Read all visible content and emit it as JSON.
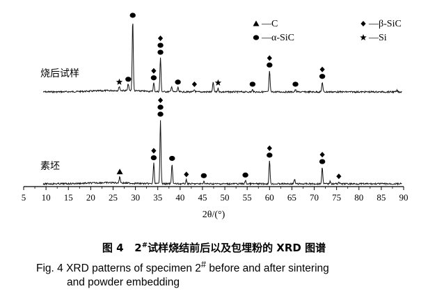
{
  "chart_data": {
    "type": "line",
    "xlabel": "2θ/(°)",
    "ylabel": "",
    "xlim": [
      5,
      90
    ],
    "x_ticks": [
      "5",
      "10",
      "15",
      "20",
      "25",
      "30",
      "35",
      "40",
      "45",
      "50",
      "55",
      "60",
      "65",
      "70",
      "75",
      "80",
      "85",
      "90"
    ],
    "series": [
      {
        "name": "烧后试样",
        "peaks": [
          {
            "x": 26.4,
            "h": 0.06
          },
          {
            "x": 28.4,
            "h": 0.1
          },
          {
            "x": 29.4,
            "h": 1.0
          },
          {
            "x": 34.1,
            "h": 0.12
          },
          {
            "x": 35.6,
            "h": 0.48
          },
          {
            "x": 38.1,
            "h": 0.08
          },
          {
            "x": 39.5,
            "h": 0.06
          },
          {
            "x": 43.2,
            "h": 0.03
          },
          {
            "x": 47.4,
            "h": 0.14
          },
          {
            "x": 48.5,
            "h": 0.05
          },
          {
            "x": 56.2,
            "h": 0.03
          },
          {
            "x": 60.0,
            "h": 0.3
          },
          {
            "x": 65.8,
            "h": 0.03
          },
          {
            "x": 71.8,
            "h": 0.14
          },
          {
            "x": 88.5,
            "h": 0.02
          }
        ]
      },
      {
        "name": "素坯",
        "peaks": [
          {
            "x": 26.5,
            "h": 0.1
          },
          {
            "x": 34.1,
            "h": 0.32
          },
          {
            "x": 35.6,
            "h": 1.0
          },
          {
            "x": 38.2,
            "h": 0.31
          },
          {
            "x": 41.4,
            "h": 0.06
          },
          {
            "x": 45.3,
            "h": 0.04
          },
          {
            "x": 54.6,
            "h": 0.05
          },
          {
            "x": 60.0,
            "h": 0.36
          },
          {
            "x": 65.6,
            "h": 0.07
          },
          {
            "x": 71.8,
            "h": 0.26
          },
          {
            "x": 73.6,
            "h": 0.04
          },
          {
            "x": 75.5,
            "h": 0.03
          }
        ]
      }
    ],
    "legend": [
      {
        "symbol": "triangle",
        "label": "—C"
      },
      {
        "symbol": "diamond",
        "label": "—β-SiC"
      },
      {
        "symbol": "circle",
        "label": "—α-SiC"
      },
      {
        "symbol": "star",
        "label": "—Si"
      }
    ],
    "markers": [
      {
        "series": 0,
        "x": 26.4,
        "symbols": [
          "star"
        ]
      },
      {
        "series": 0,
        "x": 28.4,
        "symbols": [
          "circle"
        ]
      },
      {
        "series": 0,
        "x": 29.4,
        "symbols": [
          "circle"
        ]
      },
      {
        "series": 0,
        "x": 34.1,
        "symbols": [
          "diamond",
          "circle"
        ]
      },
      {
        "series": 0,
        "x": 35.6,
        "symbols": [
          "diamond",
          "circle",
          "circle"
        ]
      },
      {
        "series": 0,
        "x": 39.5,
        "symbols": [
          "circle"
        ]
      },
      {
        "series": 0,
        "x": 43.2,
        "symbols": [
          "diamond"
        ]
      },
      {
        "series": 0,
        "x": 48.5,
        "symbols": [
          "star"
        ]
      },
      {
        "series": 0,
        "x": 56.2,
        "symbols": [
          "circle"
        ]
      },
      {
        "series": 0,
        "x": 60.0,
        "symbols": [
          "diamond",
          "circle"
        ]
      },
      {
        "series": 0,
        "x": 65.8,
        "symbols": [
          "circle"
        ]
      },
      {
        "series": 0,
        "x": 71.8,
        "symbols": [
          "diamond",
          "circle"
        ]
      },
      {
        "series": 1,
        "x": 26.5,
        "symbols": [
          "triangle"
        ]
      },
      {
        "series": 1,
        "x": 34.1,
        "symbols": [
          "diamond",
          "circle"
        ]
      },
      {
        "series": 1,
        "x": 35.6,
        "symbols": [
          "diamond",
          "circle",
          "circle"
        ]
      },
      {
        "series": 1,
        "x": 38.2,
        "symbols": [
          "circle"
        ]
      },
      {
        "series": 1,
        "x": 41.4,
        "symbols": [
          "diamond"
        ]
      },
      {
        "series": 1,
        "x": 45.3,
        "symbols": [
          "circle"
        ]
      },
      {
        "series": 1,
        "x": 54.6,
        "symbols": [
          "circle"
        ]
      },
      {
        "series": 1,
        "x": 60.0,
        "symbols": [
          "diamond",
          "circle"
        ]
      },
      {
        "series": 1,
        "x": 71.8,
        "symbols": [
          "diamond",
          "circle"
        ]
      },
      {
        "series": 1,
        "x": 75.5,
        "symbols": [
          "diamond"
        ]
      }
    ],
    "grid": false
  },
  "caption": {
    "cn_prefix": "图 4",
    "cn_sup": "#",
    "cn_num": "2",
    "cn_text": "试样烧结前后以及包埋粉的 XRD 图谱",
    "en_line1": "Fig. 4 XRD patterns of specimen 2",
    "en_sup": "#",
    "en_line1_end": " before and after sintering",
    "en_line2": "and powder embedding"
  }
}
